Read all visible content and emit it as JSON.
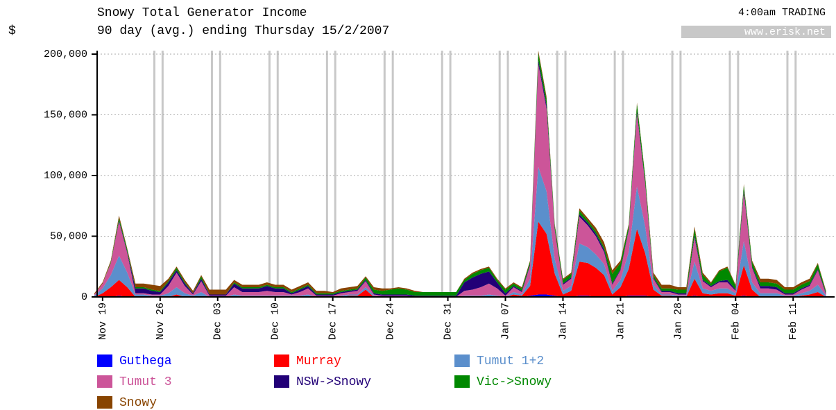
{
  "chart_data": {
    "type": "stacked_area",
    "title": "Snowy Total Generator Income",
    "subtitle": "90 day (avg.) ending Thursday 15/2/2007",
    "y_label": "$",
    "note": "4:00am TRADING",
    "source": "www.erisk.net",
    "categories": [
      null,
      "Nov 19",
      null,
      null,
      null,
      null,
      null,
      null,
      "Nov 26",
      null,
      null,
      null,
      null,
      null,
      null,
      "Dec 03",
      null,
      null,
      null,
      null,
      null,
      null,
      "Dec 10",
      null,
      null,
      null,
      null,
      null,
      null,
      "Dec 17",
      null,
      null,
      null,
      null,
      null,
      null,
      "Dec 24",
      null,
      null,
      null,
      null,
      null,
      null,
      "Dec 31",
      null,
      null,
      null,
      null,
      null,
      null,
      "Jan 07",
      null,
      null,
      null,
      null,
      null,
      null,
      "Jan 14",
      null,
      null,
      null,
      null,
      null,
      null,
      "Jan 21",
      null,
      null,
      null,
      null,
      null,
      null,
      "Jan 28",
      null,
      null,
      null,
      null,
      null,
      null,
      "Feb 04",
      null,
      null,
      null,
      null,
      null,
      null,
      "Feb 11",
      null,
      null,
      null,
      null
    ],
    "ylim": [
      0,
      200000
    ],
    "yticks": [
      0,
      {
        "value": 50000,
        "label": "50,000"
      },
      {
        "value": 100000,
        "label": "100,000"
      },
      {
        "value": 150000,
        "label": "150,000"
      },
      {
        "value": 200000,
        "label": "200,000"
      }
    ],
    "grid": true,
    "series": [
      {
        "name": "Guthega",
        "color": "#0000ff",
        "values": [
          0,
          0,
          0,
          1000,
          0,
          0,
          0,
          0,
          0,
          0,
          0,
          0,
          0,
          0,
          0,
          0,
          0,
          0,
          0,
          0,
          0,
          0,
          0,
          0,
          0,
          0,
          0,
          0,
          0,
          0,
          0,
          0,
          0,
          0,
          0,
          0,
          0,
          0,
          0,
          0,
          0,
          0,
          0,
          0,
          0,
          0,
          0,
          0,
          0,
          0,
          0,
          0,
          0,
          1000,
          2000,
          2000,
          1000,
          0,
          0,
          1000,
          1000,
          0,
          0,
          0,
          0,
          1000,
          1000,
          1000,
          0,
          0,
          0,
          0,
          0,
          1000,
          0,
          0,
          0,
          0,
          0,
          1000,
          0,
          0,
          0,
          0,
          0,
          0,
          0,
          0,
          0,
          0
        ]
      },
      {
        "name": "Murray",
        "color": "#ff0000",
        "values": [
          0,
          3000,
          8000,
          13000,
          8000,
          0,
          0,
          0,
          0,
          0,
          2000,
          0,
          0,
          0,
          0,
          0,
          0,
          0,
          0,
          0,
          0,
          0,
          0,
          0,
          0,
          0,
          0,
          0,
          0,
          0,
          0,
          1000,
          1000,
          6000,
          0,
          0,
          0,
          0,
          0,
          0,
          0,
          0,
          0,
          0,
          0,
          0,
          0,
          0,
          0,
          0,
          0,
          2000,
          1000,
          8000,
          60000,
          50000,
          18000,
          2000,
          5000,
          28000,
          27000,
          24000,
          18000,
          2000,
          8000,
          22000,
          55000,
          35000,
          6000,
          1000,
          1000,
          0,
          0,
          14000,
          3000,
          2000,
          3000,
          3000,
          1000,
          25000,
          6000,
          0,
          0,
          0,
          0,
          0,
          1000,
          2000,
          4000,
          0
        ]
      },
      {
        "name": "Tumut 1+2",
        "color": "#5b8fcc",
        "values": [
          1000,
          4000,
          10000,
          20000,
          12000,
          2000,
          2000,
          1000,
          1000,
          3000,
          6000,
          3000,
          1000,
          4000,
          0,
          0,
          0,
          2000,
          1000,
          1000,
          1000,
          1000,
          1000,
          1000,
          1000,
          1000,
          2000,
          0,
          0,
          0,
          1000,
          1000,
          1000,
          2000,
          1000,
          0,
          0,
          0,
          0,
          0,
          0,
          0,
          0,
          0,
          0,
          1000,
          1000,
          1000,
          2000,
          1000,
          0,
          2000,
          1000,
          6000,
          45000,
          35000,
          12000,
          3000,
          4000,
          15000,
          13000,
          11000,
          9000,
          3000,
          6000,
          14000,
          35000,
          22000,
          4000,
          1000,
          1000,
          1000,
          1000,
          14000,
          4000,
          3000,
          4000,
          4000,
          2000,
          20000,
          6000,
          3000,
          3000,
          3000,
          1000,
          1000,
          2000,
          3000,
          6000,
          1000
        ]
      },
      {
        "name": "Tumut 3",
        "color": "#cc5599",
        "values": [
          1000,
          4000,
          10000,
          28000,
          16000,
          1000,
          1000,
          1000,
          1000,
          6000,
          12000,
          6000,
          1000,
          9000,
          1000,
          1000,
          1000,
          6000,
          3000,
          3000,
          3000,
          4000,
          3000,
          3000,
          1000,
          3000,
          5000,
          1000,
          1000,
          1000,
          2000,
          2000,
          3000,
          5000,
          1000,
          1000,
          1000,
          1000,
          1000,
          0,
          0,
          0,
          0,
          0,
          0,
          4000,
          5000,
          7000,
          9000,
          6000,
          1000,
          4000,
          2000,
          11000,
          85000,
          68000,
          24000,
          5000,
          6000,
          22000,
          18000,
          15000,
          10000,
          5000,
          8000,
          18000,
          60000,
          35000,
          5000,
          2000,
          2000,
          1000,
          1000,
          20000,
          6000,
          3000,
          5000,
          5000,
          2000,
          40000,
          12000,
          4000,
          4000,
          3000,
          1000,
          1000,
          3000,
          4000,
          12000,
          1000
        ]
      },
      {
        "name": "NSW->Snowy",
        "color": "#220077",
        "values": [
          0,
          0,
          0,
          1000,
          1000,
          4000,
          4000,
          3000,
          2000,
          3000,
          2000,
          2000,
          1000,
          2000,
          1000,
          1000,
          1000,
          3000,
          3000,
          3000,
          3000,
          4000,
          3000,
          3000,
          1000,
          2000,
          2000,
          1000,
          1000,
          1000,
          1000,
          1000,
          1000,
          1000,
          1000,
          1000,
          1000,
          1000,
          1000,
          1000,
          1000,
          1000,
          1000,
          1000,
          1000,
          7000,
          10000,
          11000,
          10000,
          5000,
          2000,
          1000,
          1000,
          1000,
          3000,
          3000,
          1000,
          1000,
          1000,
          2000,
          2000,
          2000,
          2000,
          1000,
          1000,
          1000,
          2000,
          1000,
          1000,
          1000,
          1000,
          1000,
          1000,
          2000,
          1000,
          1000,
          1000,
          2000,
          1000,
          2000,
          1000,
          2000,
          2000,
          2000,
          1000,
          1000,
          1000,
          1000,
          1000,
          1000
        ]
      },
      {
        "name": "Vic->Snowy",
        "color": "#008800",
        "values": [
          0,
          0,
          1000,
          2000,
          2000,
          1000,
          1000,
          1000,
          1000,
          1000,
          2000,
          1000,
          0,
          2000,
          0,
          0,
          0,
          1000,
          1000,
          1000,
          1000,
          1000,
          1000,
          1000,
          1000,
          1000,
          1000,
          1000,
          1000,
          1000,
          1000,
          1000,
          1000,
          2000,
          3000,
          3000,
          4000,
          5000,
          4000,
          3000,
          3000,
          3000,
          3000,
          3000,
          3000,
          2000,
          3000,
          3000,
          3000,
          2000,
          3000,
          2000,
          2000,
          2000,
          6000,
          5000,
          3000,
          3000,
          3000,
          3000,
          2000,
          2000,
          2000,
          8000,
          5000,
          3000,
          6000,
          5000,
          2000,
          2000,
          2000,
          3000,
          3000,
          5000,
          4000,
          2000,
          8000,
          10000,
          3000,
          4000,
          4000,
          3000,
          3000,
          3000,
          3000,
          3000,
          3000,
          3000,
          4000,
          1000
        ]
      },
      {
        "name": "Snowy",
        "color": "#884400",
        "values": [
          1000,
          1000,
          1000,
          2000,
          1000,
          3000,
          3000,
          4000,
          4000,
          2000,
          1000,
          2000,
          2000,
          1000,
          4000,
          4000,
          4000,
          2000,
          2000,
          2000,
          2000,
          2000,
          2000,
          2000,
          2000,
          2000,
          2000,
          2000,
          2000,
          1000,
          2000,
          2000,
          2000,
          1000,
          2000,
          2000,
          1000,
          1000,
          1000,
          1000,
          0,
          0,
          0,
          0,
          0,
          1000,
          1000,
          1000,
          1000,
          1000,
          1000,
          1000,
          1000,
          1000,
          2000,
          2000,
          1000,
          1000,
          1000,
          2000,
          2000,
          3000,
          4000,
          3000,
          2000,
          1000,
          1000,
          1000,
          2000,
          3000,
          3000,
          2000,
          2000,
          2000,
          2000,
          1000,
          1000,
          1000,
          1000,
          1000,
          1000,
          3000,
          3000,
          3000,
          2000,
          2000,
          2000,
          2000,
          1000,
          1000
        ]
      }
    ]
  }
}
